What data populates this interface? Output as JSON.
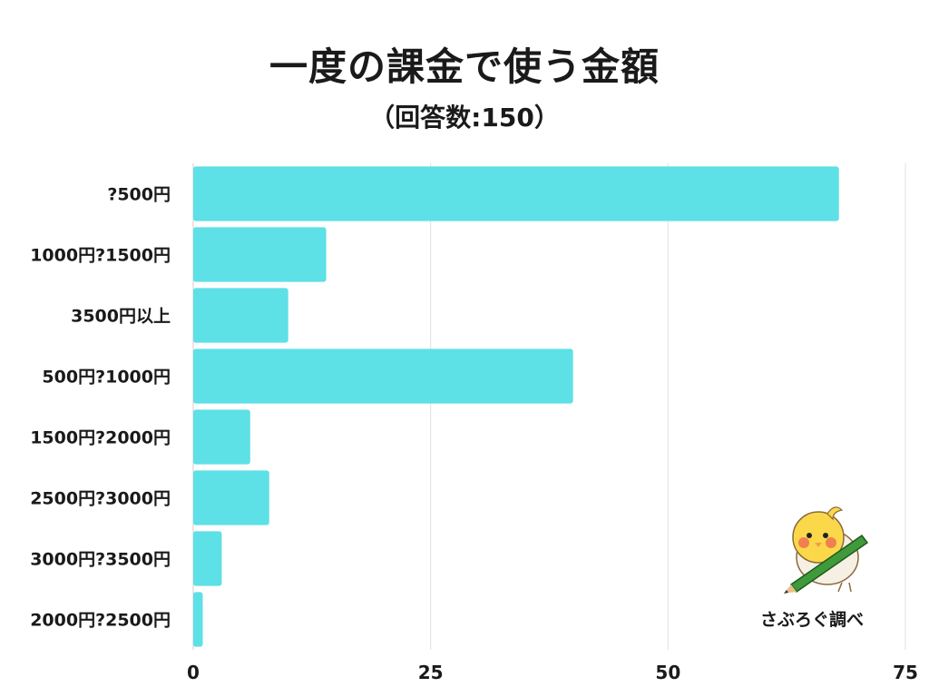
{
  "header": {
    "title": "一度の課金で使う金額",
    "subtitle": "（回答数:150）"
  },
  "credit": "さぶろぐ調べ",
  "colors": {
    "bar": "#5de0e6",
    "grid": "#e2e2e2",
    "text": "#1a1a1a"
  },
  "chart_data": {
    "type": "bar",
    "orientation": "horizontal",
    "title": "一度の課金で使う金額",
    "subtitle": "（回答数:150）",
    "categories": [
      "?500円",
      "1000円?1500円",
      "3500円以上",
      "500円?1000円",
      "1500円?2000円",
      "2500円?3000円",
      "3000円?3500円",
      "2000円?2500円"
    ],
    "values": [
      68,
      14,
      10,
      40,
      6,
      8,
      3,
      1
    ],
    "xlim": [
      0,
      75
    ],
    "xticks": [
      "0",
      "25",
      "50",
      "75"
    ],
    "grid": true,
    "legend": "none"
  }
}
